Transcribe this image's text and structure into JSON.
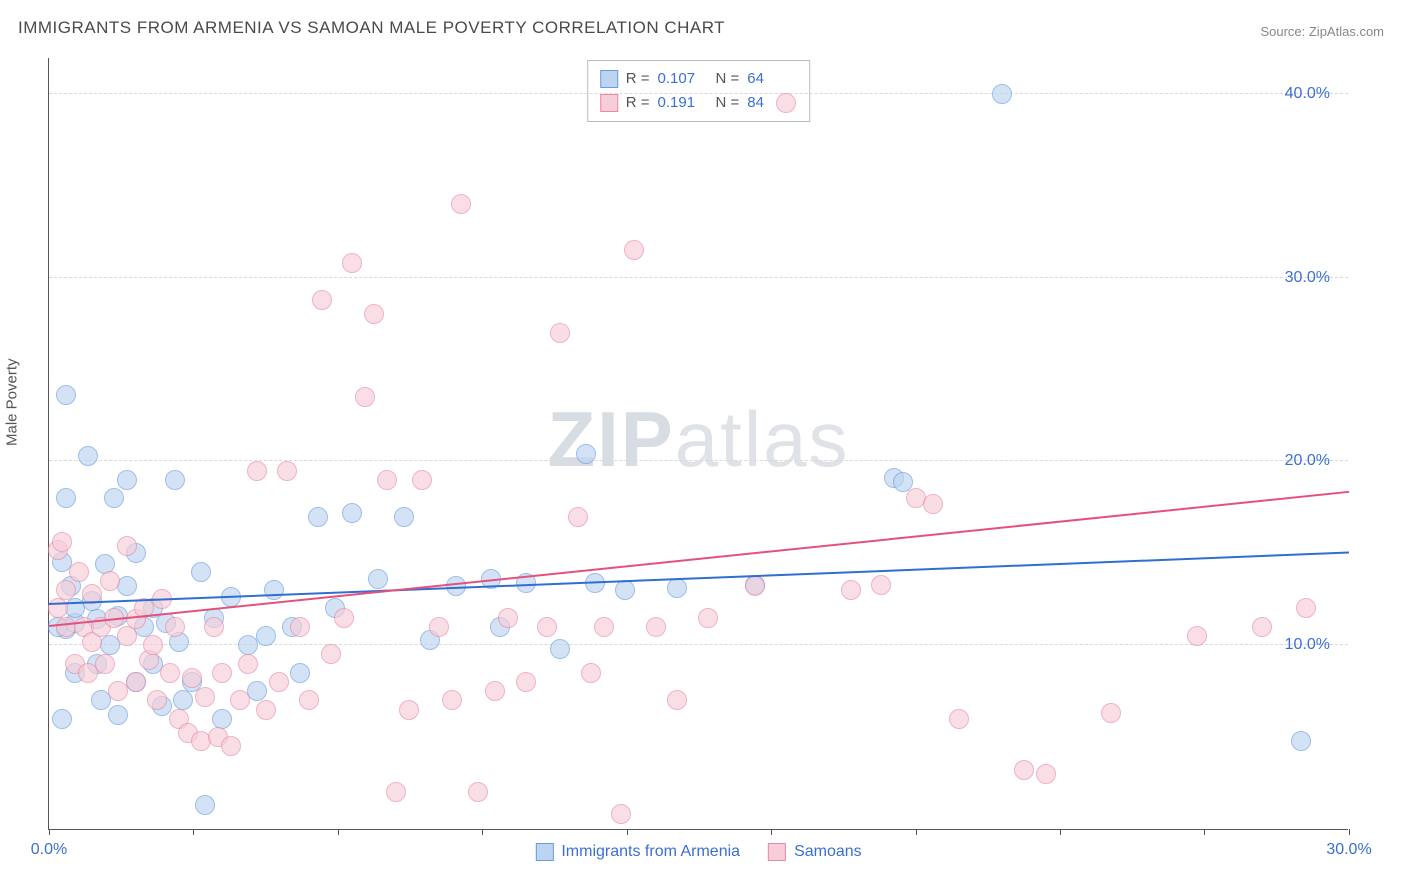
{
  "title": "IMMIGRANTS FROM ARMENIA VS SAMOAN MALE POVERTY CORRELATION CHART",
  "source": "Source: ZipAtlas.com",
  "ylabel": "Male Poverty",
  "watermark": "ZIPatlas",
  "watermark_bold_chars": 3,
  "chart": {
    "type": "scatter",
    "xlim": [
      0,
      30
    ],
    "ylim": [
      0,
      42
    ],
    "xlabel_suffix": "%",
    "ylabel_suffix": "%",
    "xticks": [
      0,
      3.33,
      6.66,
      10,
      13.33,
      16.66,
      20,
      23.33,
      26.66,
      30
    ],
    "xtick_labels": {
      "0": "0.0%",
      "30": "30.0%"
    },
    "yticks": [
      10,
      20,
      30,
      40
    ],
    "ytick_labels": {
      "10": "10.0%",
      "20": "20.0%",
      "30": "30.0%",
      "40": "40.0%"
    },
    "grid_color": "#d9d9d9",
    "background_color": "#ffffff",
    "axis_color": "#555555",
    "tick_label_color": "#3b6fd6",
    "point_radius": 10,
    "point_stroke_width": 1
  },
  "series": [
    {
      "name": "Immigrants from Armenia",
      "fill_color": "#bcd4f0",
      "stroke_color": "#6a9de0",
      "fill_opacity": 0.65,
      "R": "0.107",
      "N": "64",
      "trend": {
        "y_at_x0": 12.2,
        "y_at_xmax": 15.0,
        "line_color": "#2f6fd0",
        "line_width": 2
      },
      "points": [
        [
          0.4,
          23.6
        ],
        [
          0.3,
          14.5
        ],
        [
          0.4,
          10.9
        ],
        [
          0.6,
          11.2
        ],
        [
          0.5,
          13.2
        ],
        [
          0.3,
          6.0
        ],
        [
          0.6,
          8.5
        ],
        [
          0.4,
          18.0
        ],
        [
          0.6,
          12.0
        ],
        [
          0.9,
          20.3
        ],
        [
          1.0,
          12.4
        ],
        [
          1.1,
          9.0
        ],
        [
          1.2,
          7.0
        ],
        [
          1.1,
          11.4
        ],
        [
          1.3,
          14.4
        ],
        [
          1.5,
          18.0
        ],
        [
          1.4,
          10.0
        ],
        [
          1.6,
          6.2
        ],
        [
          1.6,
          11.6
        ],
        [
          1.8,
          19.0
        ],
        [
          1.8,
          13.2
        ],
        [
          2.0,
          15.0
        ],
        [
          2.2,
          11.0
        ],
        [
          2.0,
          8.0
        ],
        [
          2.4,
          12.0
        ],
        [
          2.4,
          9.0
        ],
        [
          2.6,
          6.7
        ],
        [
          2.7,
          11.2
        ],
        [
          2.9,
          19.0
        ],
        [
          3.0,
          10.2
        ],
        [
          3.1,
          7.0
        ],
        [
          3.3,
          8.0
        ],
        [
          3.5,
          14.0
        ],
        [
          3.6,
          1.3
        ],
        [
          3.8,
          11.5
        ],
        [
          4.0,
          6.0
        ],
        [
          4.2,
          12.6
        ],
        [
          4.6,
          10.0
        ],
        [
          4.8,
          7.5
        ],
        [
          5.0,
          10.5
        ],
        [
          5.2,
          13.0
        ],
        [
          5.6,
          11.0
        ],
        [
          5.8,
          8.5
        ],
        [
          6.2,
          17.0
        ],
        [
          6.6,
          12.0
        ],
        [
          7.0,
          17.2
        ],
        [
          7.6,
          13.6
        ],
        [
          8.2,
          17.0
        ],
        [
          8.8,
          10.3
        ],
        [
          9.4,
          13.2
        ],
        [
          10.2,
          13.6
        ],
        [
          10.4,
          11.0
        ],
        [
          11.0,
          13.4
        ],
        [
          11.8,
          9.8
        ],
        [
          12.4,
          20.4
        ],
        [
          12.6,
          13.4
        ],
        [
          13.3,
          13.0
        ],
        [
          14.5,
          13.1
        ],
        [
          16.3,
          13.3
        ],
        [
          19.5,
          19.1
        ],
        [
          19.7,
          18.9
        ],
        [
          22.0,
          40.0
        ],
        [
          28.9,
          4.8
        ],
        [
          0.2,
          11.0
        ]
      ]
    },
    {
      "name": "Samoans",
      "fill_color": "#f6cdd8",
      "stroke_color": "#e88aa5",
      "fill_opacity": 0.65,
      "R": "0.191",
      "N": "84",
      "trend": {
        "y_at_x0": 11.0,
        "y_at_xmax": 18.3,
        "line_color": "#e5517b",
        "line_width": 2
      },
      "points": [
        [
          0.2,
          15.2
        ],
        [
          0.2,
          12.0
        ],
        [
          0.3,
          15.6
        ],
        [
          0.4,
          11.0
        ],
        [
          0.4,
          13.0
        ],
        [
          0.6,
          9.0
        ],
        [
          0.7,
          14.0
        ],
        [
          0.8,
          11.0
        ],
        [
          0.9,
          8.5
        ],
        [
          1.0,
          10.2
        ],
        [
          1.0,
          12.8
        ],
        [
          1.2,
          11.0
        ],
        [
          1.3,
          9.0
        ],
        [
          1.4,
          13.5
        ],
        [
          1.5,
          11.5
        ],
        [
          1.6,
          7.5
        ],
        [
          1.8,
          15.4
        ],
        [
          1.8,
          10.5
        ],
        [
          2.0,
          8.0
        ],
        [
          2.0,
          11.4
        ],
        [
          2.2,
          12.0
        ],
        [
          2.3,
          9.2
        ],
        [
          2.4,
          10.0
        ],
        [
          2.5,
          7.0
        ],
        [
          2.6,
          12.5
        ],
        [
          2.8,
          8.5
        ],
        [
          2.9,
          11.0
        ],
        [
          3.0,
          6.0
        ],
        [
          3.2,
          5.2
        ],
        [
          3.3,
          8.2
        ],
        [
          3.5,
          4.8
        ],
        [
          3.6,
          7.2
        ],
        [
          3.8,
          11.0
        ],
        [
          3.9,
          5.0
        ],
        [
          4.0,
          8.5
        ],
        [
          4.2,
          4.5
        ],
        [
          4.4,
          7.0
        ],
        [
          4.6,
          9.0
        ],
        [
          4.8,
          19.5
        ],
        [
          5.0,
          6.5
        ],
        [
          5.3,
          8.0
        ],
        [
          5.5,
          19.5
        ],
        [
          5.8,
          11.0
        ],
        [
          6.0,
          7.0
        ],
        [
          6.3,
          28.8
        ],
        [
          6.5,
          9.5
        ],
        [
          6.8,
          11.5
        ],
        [
          7.0,
          30.8
        ],
        [
          7.3,
          23.5
        ],
        [
          7.5,
          28.0
        ],
        [
          7.8,
          19.0
        ],
        [
          8.0,
          2.0
        ],
        [
          8.3,
          6.5
        ],
        [
          8.6,
          19.0
        ],
        [
          9.0,
          11.0
        ],
        [
          9.3,
          7.0
        ],
        [
          9.5,
          34.0
        ],
        [
          9.9,
          2.0
        ],
        [
          10.3,
          7.5
        ],
        [
          10.6,
          11.5
        ],
        [
          11.0,
          8.0
        ],
        [
          11.5,
          11.0
        ],
        [
          11.8,
          27.0
        ],
        [
          12.2,
          17.0
        ],
        [
          12.5,
          8.5
        ],
        [
          12.8,
          11.0
        ],
        [
          13.2,
          0.8
        ],
        [
          13.5,
          31.5
        ],
        [
          14.0,
          11.0
        ],
        [
          14.5,
          7.0
        ],
        [
          15.2,
          11.5
        ],
        [
          16.3,
          13.2
        ],
        [
          17.0,
          39.5
        ],
        [
          18.5,
          13.0
        ],
        [
          19.2,
          13.3
        ],
        [
          20.0,
          18.0
        ],
        [
          20.4,
          17.7
        ],
        [
          21.0,
          6.0
        ],
        [
          22.5,
          3.2
        ],
        [
          23.0,
          3.0
        ],
        [
          24.5,
          6.3
        ],
        [
          26.5,
          10.5
        ],
        [
          28.0,
          11.0
        ],
        [
          29.0,
          12.0
        ]
      ]
    }
  ],
  "stats_box": {
    "rows": [
      {
        "series": 0,
        "R_label": "R =",
        "N_label": "N ="
      },
      {
        "series": 1,
        "R_label": "R =",
        "N_label": "N ="
      }
    ]
  },
  "bottom_legend": {
    "items": [
      {
        "series": 0
      },
      {
        "series": 1
      }
    ]
  }
}
